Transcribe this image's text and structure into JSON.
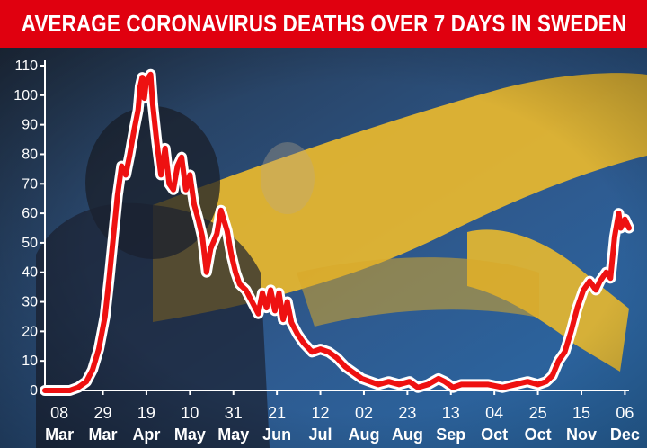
{
  "title": "AVERAGE CORONAVIRUS DEATHS OVER 7 DAYS IN SWEDEN",
  "colors": {
    "title_bar": "#e0000f",
    "line_outer": "#ffffff",
    "line_inner": "#ee1111",
    "flag_blue": "#2f5f99",
    "flag_yellow": "#f1c232",
    "axis": "#ffffff"
  },
  "chart_data": {
    "type": "line",
    "title": "AVERAGE CORONAVIRUS DEATHS OVER 7 DAYS IN SWEDEN",
    "xlabel": "",
    "ylabel": "",
    "ylim": [
      0,
      110
    ],
    "yticks": [
      0,
      10,
      20,
      30,
      40,
      50,
      60,
      70,
      80,
      90,
      100,
      110
    ],
    "xlim": [
      "2020-03-01",
      "2020-12-08"
    ],
    "xticks": [
      {
        "date": "2020-03-08",
        "day": "08",
        "month": "Mar"
      },
      {
        "date": "2020-03-29",
        "day": "29",
        "month": "Mar"
      },
      {
        "date": "2020-04-19",
        "day": "19",
        "month": "Apr"
      },
      {
        "date": "2020-05-10",
        "day": "10",
        "month": "May"
      },
      {
        "date": "2020-05-31",
        "day": "31",
        "month": "May"
      },
      {
        "date": "2020-06-21",
        "day": "21",
        "month": "Jun"
      },
      {
        "date": "2020-07-12",
        "day": "12",
        "month": "Jul"
      },
      {
        "date": "2020-08-02",
        "day": "02",
        "month": "Aug"
      },
      {
        "date": "2020-08-23",
        "day": "23",
        "month": "Aug"
      },
      {
        "date": "2020-09-13",
        "day": "13",
        "month": "Sep"
      },
      {
        "date": "2020-10-04",
        "day": "04",
        "month": "Oct"
      },
      {
        "date": "2020-10-25",
        "day": "25",
        "month": "Oct"
      },
      {
        "date": "2020-11-15",
        "day": "15",
        "month": "Nov"
      },
      {
        "date": "2020-12-06",
        "day": "06",
        "month": "Dec"
      }
    ],
    "grid": false,
    "series": [
      {
        "points": [
          [
            "2020-03-01",
            0
          ],
          [
            "2020-03-13",
            0
          ],
          [
            "2020-03-17",
            1
          ],
          [
            "2020-03-21",
            3
          ],
          [
            "2020-03-24",
            7
          ],
          [
            "2020-03-27",
            14
          ],
          [
            "2020-03-30",
            25
          ],
          [
            "2020-04-01",
            38
          ],
          [
            "2020-04-03",
            52
          ],
          [
            "2020-04-05",
            66
          ],
          [
            "2020-04-07",
            76
          ],
          [
            "2020-04-09",
            73
          ],
          [
            "2020-04-11",
            80
          ],
          [
            "2020-04-13",
            88
          ],
          [
            "2020-04-15",
            95
          ],
          [
            "2020-04-16",
            103
          ],
          [
            "2020-04-17",
            106
          ],
          [
            "2020-04-18",
            99
          ],
          [
            "2020-04-19",
            105
          ],
          [
            "2020-04-21",
            107
          ],
          [
            "2020-04-22",
            97
          ],
          [
            "2020-04-24",
            84
          ],
          [
            "2020-04-26",
            73
          ],
          [
            "2020-04-28",
            82
          ],
          [
            "2020-04-30",
            70
          ],
          [
            "2020-05-02",
            68
          ],
          [
            "2020-05-04",
            76
          ],
          [
            "2020-05-06",
            79
          ],
          [
            "2020-05-08",
            68
          ],
          [
            "2020-05-10",
            73
          ],
          [
            "2020-05-12",
            63
          ],
          [
            "2020-05-14",
            58
          ],
          [
            "2020-05-16",
            52
          ],
          [
            "2020-05-18",
            40
          ],
          [
            "2020-05-20",
            48
          ],
          [
            "2020-05-23",
            53
          ],
          [
            "2020-05-25",
            61
          ],
          [
            "2020-05-28",
            54
          ],
          [
            "2020-05-30",
            46
          ],
          [
            "2020-06-01",
            40
          ],
          [
            "2020-06-03",
            36
          ],
          [
            "2020-06-06",
            34
          ],
          [
            "2020-06-09",
            30
          ],
          [
            "2020-06-12",
            26
          ],
          [
            "2020-06-14",
            33
          ],
          [
            "2020-06-16",
            28
          ],
          [
            "2020-06-18",
            34
          ],
          [
            "2020-06-20",
            27
          ],
          [
            "2020-06-22",
            33
          ],
          [
            "2020-06-24",
            24
          ],
          [
            "2020-06-26",
            30
          ],
          [
            "2020-06-28",
            23
          ],
          [
            "2020-07-01",
            19
          ],
          [
            "2020-07-04",
            16
          ],
          [
            "2020-07-08",
            13
          ],
          [
            "2020-07-12",
            14
          ],
          [
            "2020-07-16",
            13
          ],
          [
            "2020-07-20",
            11
          ],
          [
            "2020-07-24",
            8
          ],
          [
            "2020-07-28",
            6
          ],
          [
            "2020-08-01",
            4
          ],
          [
            "2020-08-05",
            3
          ],
          [
            "2020-08-09",
            2
          ],
          [
            "2020-08-14",
            3
          ],
          [
            "2020-08-19",
            2
          ],
          [
            "2020-08-24",
            3
          ],
          [
            "2020-08-28",
            1
          ],
          [
            "2020-09-02",
            2
          ],
          [
            "2020-09-07",
            4
          ],
          [
            "2020-09-10",
            3
          ],
          [
            "2020-09-14",
            1
          ],
          [
            "2020-09-18",
            2
          ],
          [
            "2020-09-25",
            2
          ],
          [
            "2020-10-01",
            2
          ],
          [
            "2020-10-08",
            1
          ],
          [
            "2020-10-14",
            2
          ],
          [
            "2020-10-20",
            3
          ],
          [
            "2020-10-25",
            2
          ],
          [
            "2020-10-29",
            3
          ],
          [
            "2020-11-01",
            5
          ],
          [
            "2020-11-04",
            10
          ],
          [
            "2020-11-07",
            13
          ],
          [
            "2020-11-10",
            20
          ],
          [
            "2020-11-13",
            28
          ],
          [
            "2020-11-16",
            34
          ],
          [
            "2020-11-19",
            37
          ],
          [
            "2020-11-22",
            34
          ],
          [
            "2020-11-24",
            37
          ],
          [
            "2020-11-27",
            40
          ],
          [
            "2020-11-29",
            38
          ],
          [
            "2020-12-01",
            52
          ],
          [
            "2020-12-03",
            60
          ],
          [
            "2020-12-04",
            55
          ],
          [
            "2020-12-06",
            58
          ],
          [
            "2020-12-08",
            55
          ]
        ]
      }
    ]
  }
}
